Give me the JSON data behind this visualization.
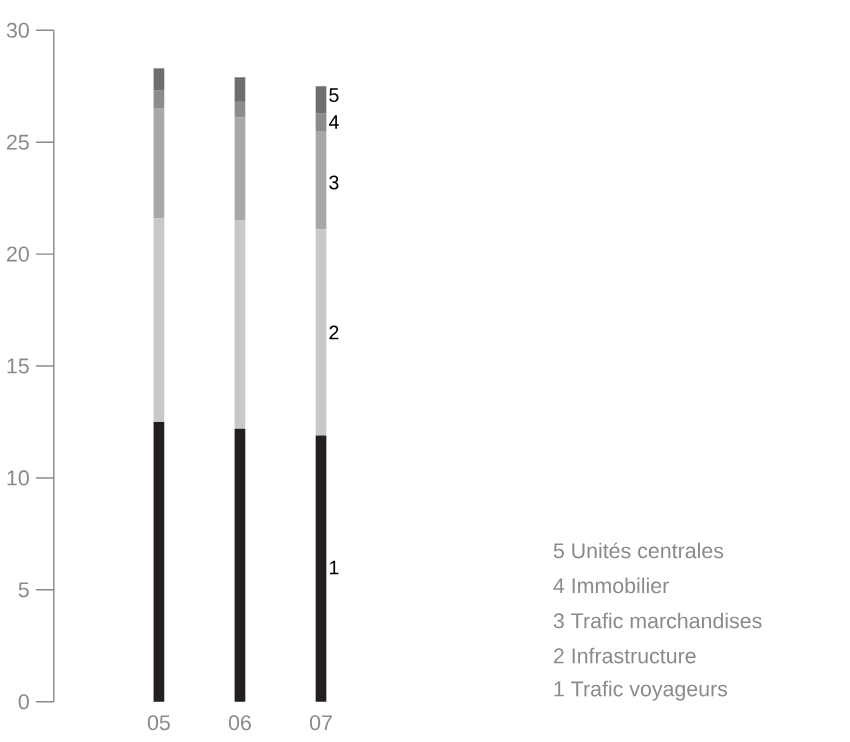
{
  "chart_data": {
    "type": "bar",
    "stacked": true,
    "categories": [
      "05",
      "06",
      "07"
    ],
    "series": [
      {
        "color": "#231f20",
        "values": [
          12.5,
          12.2,
          11.9
        ]
      },
      {
        "color": "#c8c8c8",
        "values": [
          9.1,
          9.3,
          9.2
        ]
      },
      {
        "color": "#a8a8a8",
        "values": [
          4.9,
          4.6,
          4.4
        ]
      },
      {
        "color": "#8c8c8c",
        "values": [
          0.8,
          0.7,
          0.8
        ]
      },
      {
        "color": "#6e6e6e",
        "values": [
          1.0,
          1.1,
          1.2
        ]
      }
    ],
    "ylim": [
      0,
      30
    ],
    "yticks": [
      0,
      5,
      10,
      15,
      20,
      25,
      30
    ],
    "grid": false,
    "annotations": [
      {
        "text": "5",
        "x": "07",
        "y": 27.1
      },
      {
        "text": "4",
        "x": "07",
        "y": 25.9
      },
      {
        "text": "3",
        "x": "07",
        "y": 23.2
      },
      {
        "text": "2",
        "x": "07",
        "y": 16.5
      },
      {
        "text": "1",
        "x": "07",
        "y": 6.0
      },
      "5 Unités centrales",
      "4 Immobilier",
      "3 Trafic marchandises",
      "2 Infrastructure",
      "1 Trafic voyageurs"
    ]
  }
}
